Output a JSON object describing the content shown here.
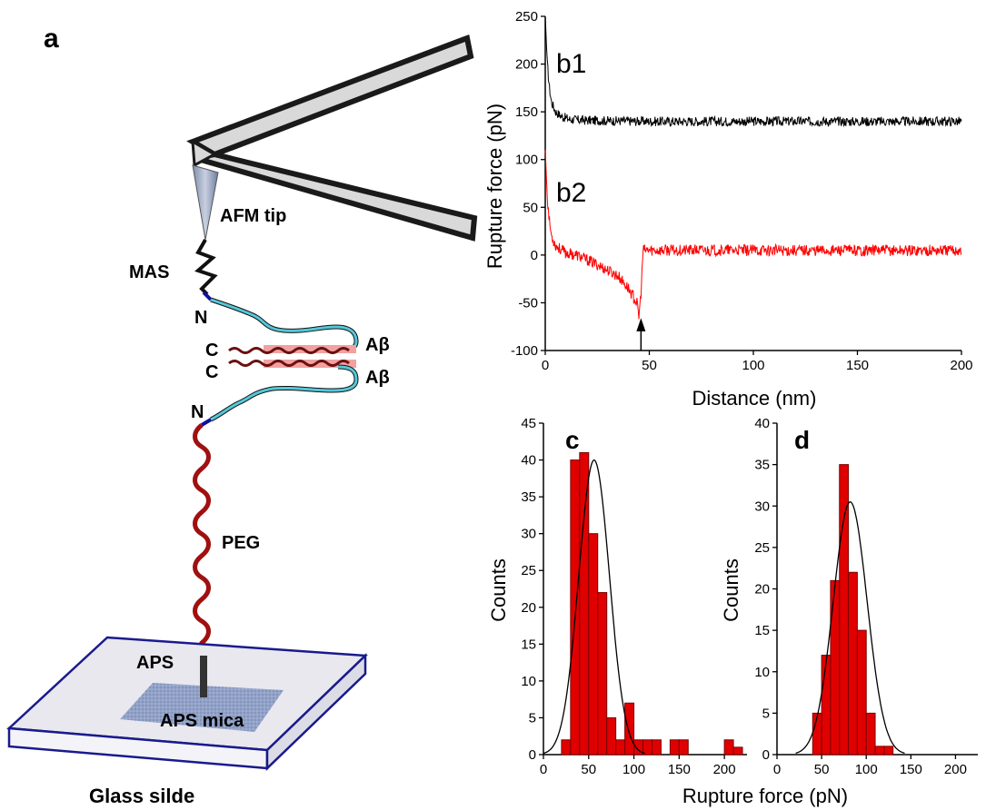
{
  "panel_a": {
    "panel_label": "a",
    "labels": {
      "afm_tip": "AFM tip",
      "mas": "MAS",
      "n_top": "N",
      "c_top": "C",
      "c_bottom": "C",
      "abeta_top": "Aβ",
      "abeta_bottom": "Aβ",
      "n_bottom": "N",
      "peg": "PEG",
      "aps": "APS",
      "aps_mica": "APS mica",
      "glass_slide": "Glass silde"
    },
    "colors": {
      "cantilever_fill": "#d9d9d9",
      "linker_cyan": "#55c8d8",
      "peg_red": "#a01010",
      "mica_blue": "#8f9fc8",
      "slide_border": "#1a1a8c",
      "strand_pink": "#f2a0a0"
    }
  },
  "chart_data": [
    {
      "type": "line",
      "panel": "b",
      "series_labels": [
        "b1",
        "b2"
      ],
      "colors": [
        "#000000",
        "#ff0000"
      ],
      "xlabel": "Distance (nm)",
      "ylabel": "Rupture force (pN)",
      "xlim": [
        0,
        200
      ],
      "ylim": [
        -100,
        250
      ],
      "xticks": [
        0,
        50,
        100,
        150,
        200
      ],
      "yticks": [
        -100,
        -50,
        0,
        50,
        100,
        150,
        200,
        250
      ],
      "series": [
        {
          "name": "b1",
          "x": [
            0,
            0.5,
            1,
            2,
            3,
            5,
            8,
            12,
            20,
            50,
            100,
            150,
            200
          ],
          "y": [
            250,
            225,
            200,
            175,
            160,
            150,
            145,
            142,
            141,
            140,
            140,
            140,
            140
          ]
        },
        {
          "name": "b2",
          "x": [
            0,
            1,
            2,
            3,
            5,
            8,
            10,
            15,
            20,
            25,
            30,
            35,
            40,
            44,
            45,
            46,
            47,
            50,
            100,
            150,
            200
          ],
          "y": [
            110,
            60,
            35,
            20,
            10,
            5,
            2,
            0,
            -5,
            -10,
            -16,
            -22,
            -35,
            -50,
            -65,
            -40,
            5,
            5,
            5,
            5,
            5
          ]
        }
      ],
      "arrow_x": 46
    },
    {
      "type": "bar",
      "panel": "c",
      "panel_label": "c",
      "xlabel": "",
      "ylabel": "Counts",
      "xlim": [
        0,
        225
      ],
      "ylim": [
        0,
        45
      ],
      "xticks": [
        0,
        50,
        100,
        150,
        200
      ],
      "yticks": [
        0,
        5,
        10,
        15,
        20,
        25,
        30,
        35,
        40,
        45
      ],
      "bin_width": 10,
      "bin_starts": [
        20,
        30,
        40,
        50,
        60,
        70,
        80,
        90,
        100,
        110,
        120,
        140,
        150,
        200,
        210
      ],
      "values": [
        2,
        40,
        41,
        30,
        22,
        5,
        2,
        7,
        2,
        2,
        2,
        2,
        2,
        2,
        1
      ],
      "fit": {
        "type": "gaussian",
        "center": 56,
        "sigma": 17,
        "amplitude": 40
      },
      "bar_color": "#e00000"
    },
    {
      "type": "bar",
      "panel": "d",
      "panel_label": "d",
      "xlabel": "Rupture force (pN)",
      "ylabel": "Counts",
      "xlim": [
        0,
        225
      ],
      "ylim": [
        0,
        40
      ],
      "xticks": [
        0,
        50,
        100,
        150,
        200
      ],
      "yticks": [
        0,
        5,
        10,
        15,
        20,
        25,
        30,
        35,
        40
      ],
      "bin_width": 10,
      "bin_starts": [
        40,
        50,
        60,
        70,
        80,
        90,
        100,
        110,
        120
      ],
      "values": [
        5,
        12,
        21,
        35,
        22,
        15,
        5,
        1,
        1
      ],
      "fit": {
        "type": "gaussian",
        "center": 82,
        "sigma": 19,
        "amplitude": 30.5
      },
      "bar_color": "#e00000"
    }
  ]
}
